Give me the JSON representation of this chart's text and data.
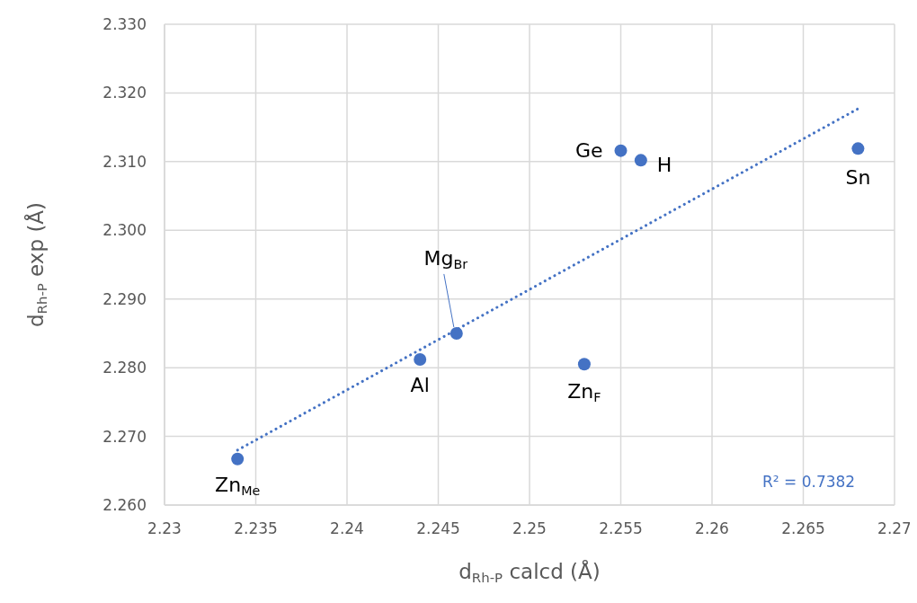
{
  "chart_data": {
    "type": "scatter",
    "xlabel": "d$_{Rh-P}$ calcd (Å)",
    "ylabel": "d$_{Rh-P}$ exp (Å)",
    "xlim": [
      2.23,
      2.27
    ],
    "xticks": [
      2.23,
      2.235,
      2.24,
      2.245,
      2.25,
      2.255,
      2.26,
      2.265,
      2.27
    ],
    "ylim": [
      2.26,
      2.33
    ],
    "yticks": [
      {
        "value": 2.26,
        "label": "2.260"
      },
      {
        "value": 2.27,
        "label": "2.270"
      },
      {
        "value": 2.28,
        "label": "2.280"
      },
      {
        "value": 2.29,
        "label": "2.290"
      },
      {
        "value": 2.3,
        "label": "2.300"
      },
      {
        "value": 2.31,
        "label": "2.310"
      },
      {
        "value": 2.32,
        "label": "2.320"
      },
      {
        "value": 2.33,
        "label": "2.330"
      }
    ],
    "grid": true,
    "marker": "circle",
    "series": [
      {
        "color": "#4472c4",
        "x": [
          2.234,
          2.244,
          2.246,
          2.253,
          2.255,
          2.2561,
          2.268
        ],
        "values": [
          2.2667,
          2.2812,
          2.285,
          2.2805,
          2.3116,
          2.3102,
          2.3119
        ]
      },
      {
        "type": "line",
        "color": "#4472c4",
        "line_style": "dotted",
        "marker": "none",
        "x": [
          2.234,
          2.268
        ],
        "values": [
          2.268,
          2.3177
        ]
      }
    ],
    "annotations": [
      {
        "text": "Zn$_{Me}$",
        "x": 2.234,
        "y": 2.2667
      },
      {
        "text": "Al",
        "x": 2.244,
        "y": 2.2812
      },
      {
        "text": "Mg$_{Br}$",
        "x": 2.246,
        "y": 2.285
      },
      {
        "text": "Zn$_{F}$",
        "x": 2.253,
        "y": 2.2805
      },
      {
        "text": "Ge",
        "x": 2.255,
        "y": 2.3116
      },
      {
        "text": "H",
        "x": 2.2561,
        "y": 2.3102
      },
      {
        "text": "Sn",
        "x": 2.268,
        "y": 2.3119
      },
      "R² = 0.7382"
    ]
  }
}
